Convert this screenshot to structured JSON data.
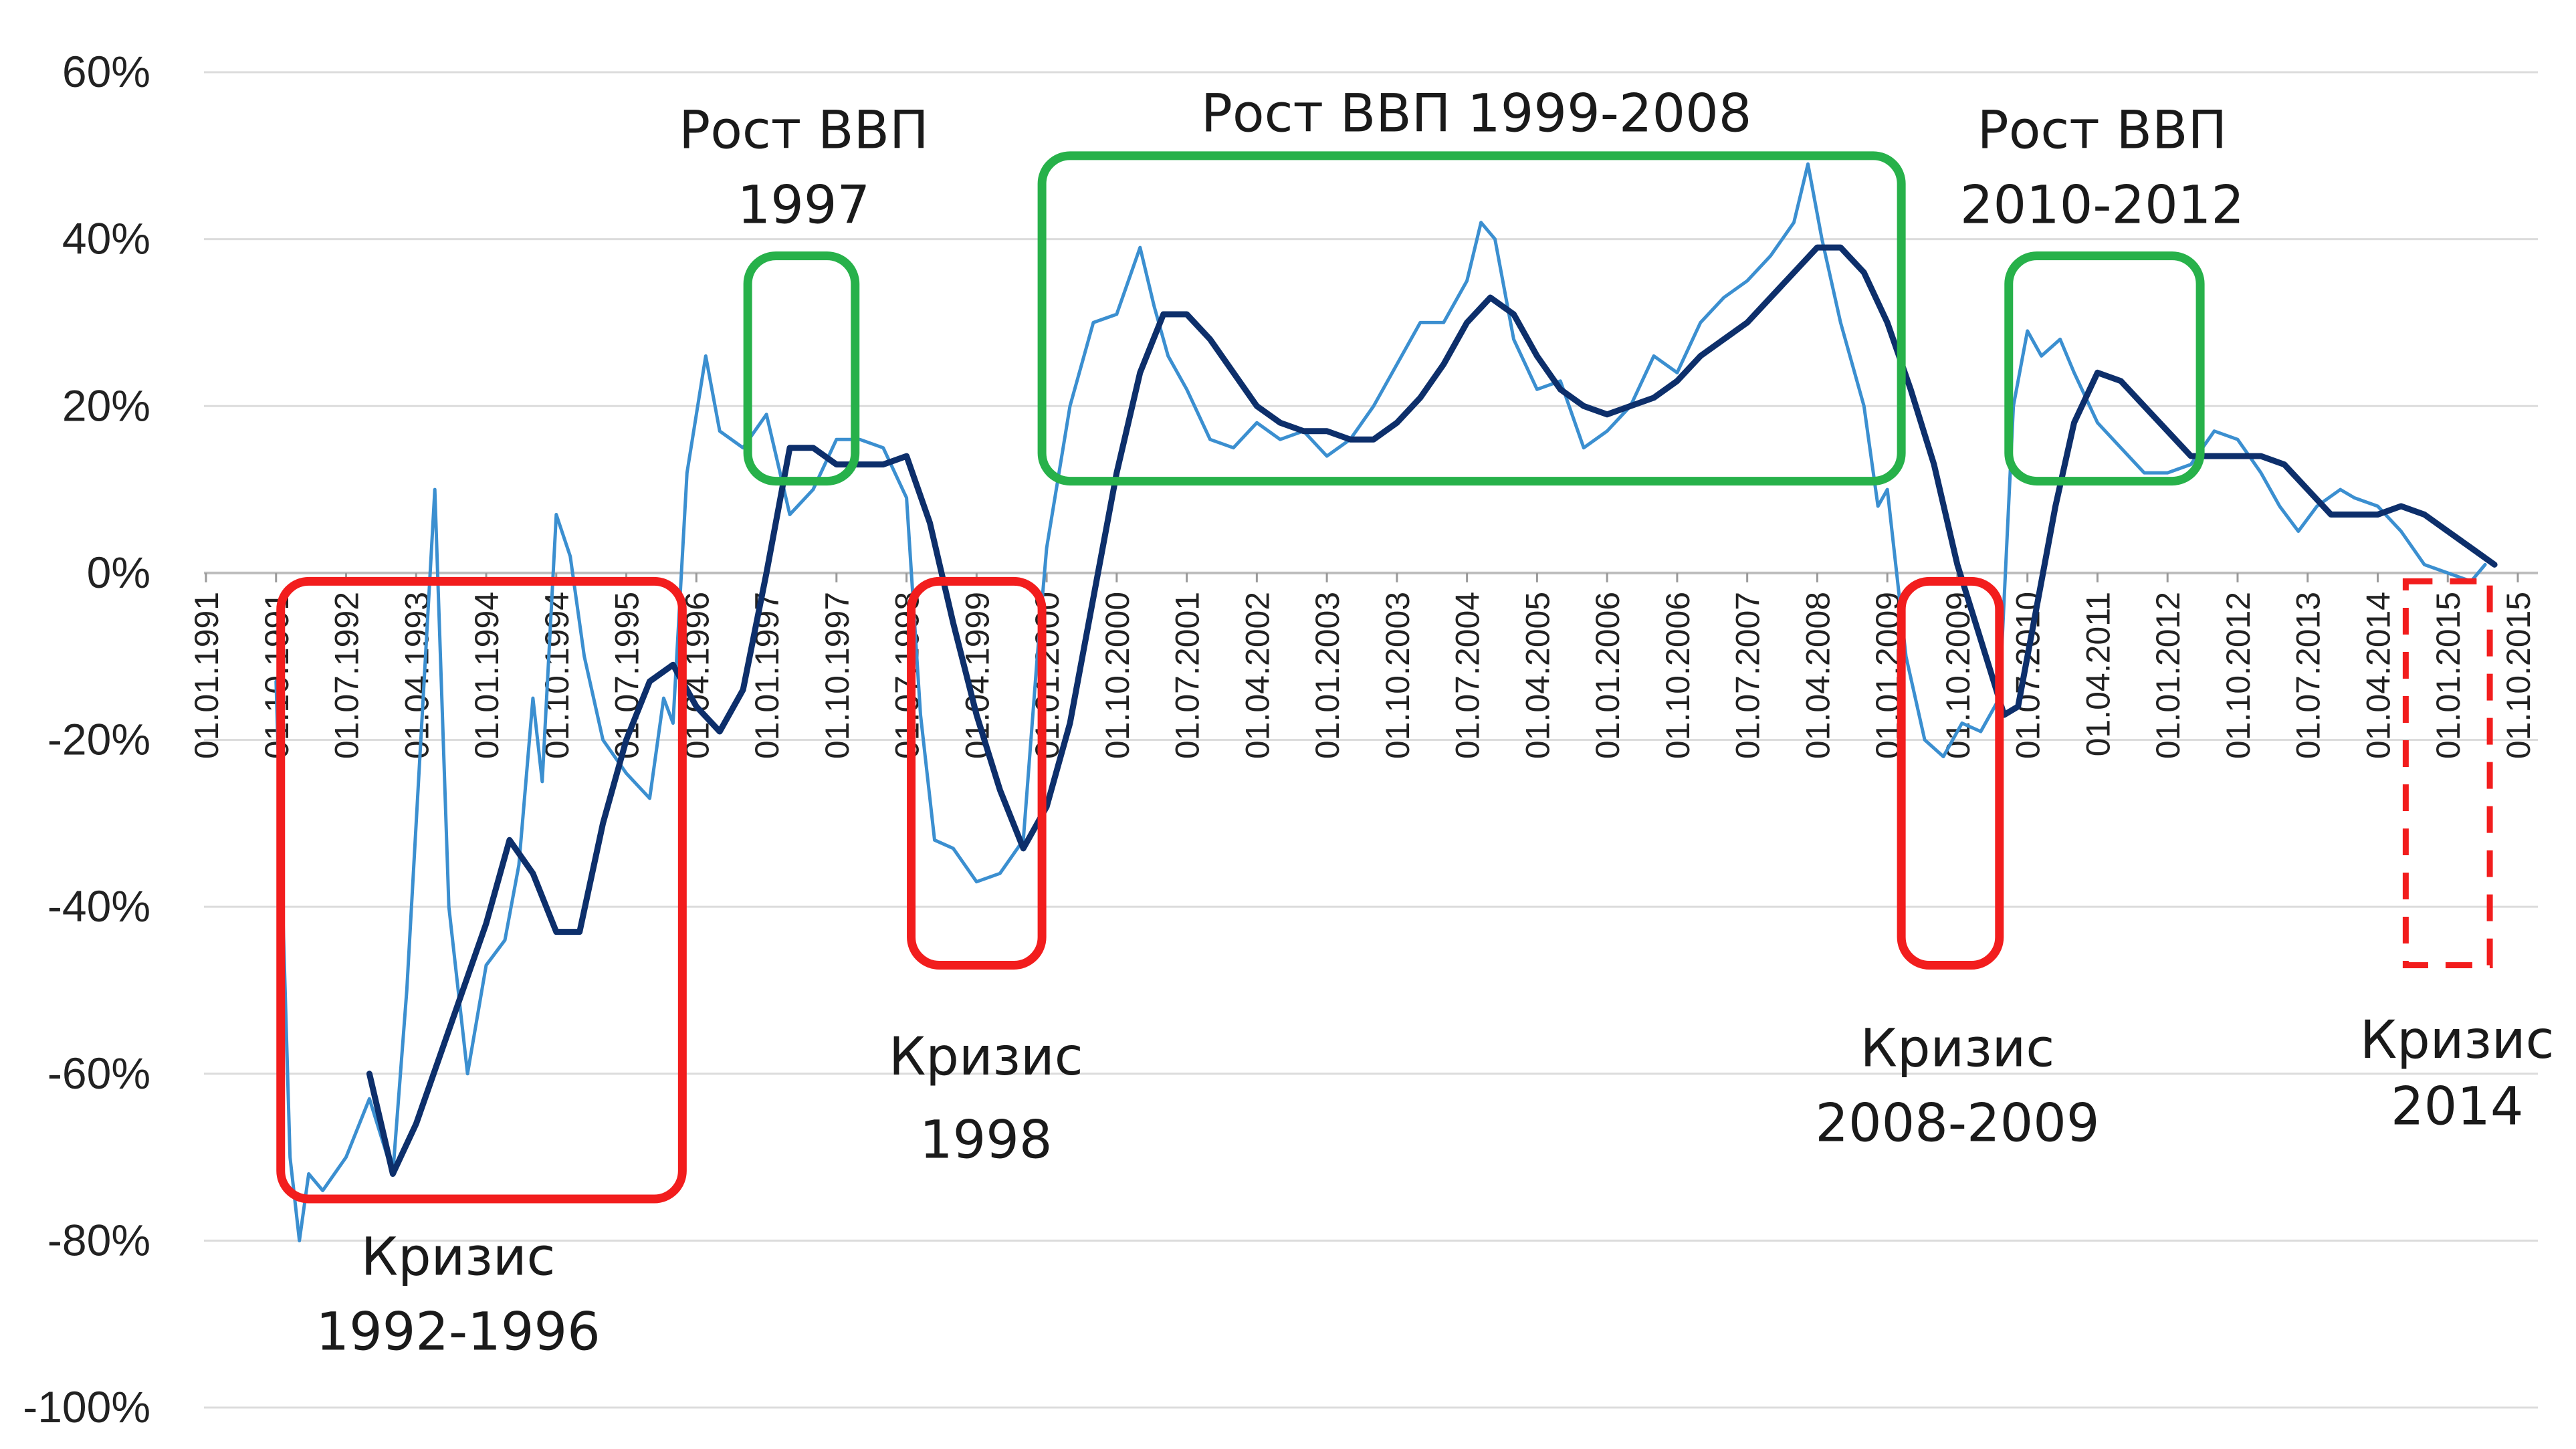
{
  "chart_data": {
    "type": "line",
    "ylim": [
      -100,
      60
    ],
    "yticks": [
      60,
      40,
      20,
      0,
      -20,
      -40,
      -60,
      -80,
      -100
    ],
    "ytick_labels": [
      "60%",
      "40%",
      "20%",
      "0%",
      "-20%",
      "-40%",
      "-60%",
      "-80%",
      "-100%"
    ],
    "x_tick_labels": [
      "01.01.1991",
      "01.10.1991",
      "01.07.1992",
      "01.04.1993",
      "01.01.1994",
      "01.10.1994",
      "01.07.1995",
      "01.04.1996",
      "01.01.1997",
      "01.10.1997",
      "01.07.1998",
      "01.04.1999",
      "01.01.2000",
      "01.10.2000",
      "01.07.2001",
      "01.04.2002",
      "01.01.2003",
      "01.10.2003",
      "01.07.2004",
      "01.04.2005",
      "01.01.2006",
      "01.10.2006",
      "01.07.2007",
      "01.04.2008",
      "01.01.2009",
      "01.10.2009",
      "01.07.2010",
      "01.04.2011",
      "01.01.2012",
      "01.10.2012",
      "01.07.2013",
      "01.04.2014",
      "01.01.2015",
      "01.10.2015"
    ],
    "grid": true,
    "series": [
      {
        "color": "#3b8fd0",
        "points": [
          [
            1991.75,
            -13
          ],
          [
            1991.9,
            -70
          ],
          [
            1992.0,
            -80
          ],
          [
            1992.1,
            -72
          ],
          [
            1992.25,
            -74
          ],
          [
            1992.5,
            -70
          ],
          [
            1992.75,
            -63
          ],
          [
            1993.0,
            -72
          ],
          [
            1993.15,
            -50
          ],
          [
            1993.3,
            -20
          ],
          [
            1993.45,
            10
          ],
          [
            1993.6,
            -40
          ],
          [
            1993.8,
            -60
          ],
          [
            1994.0,
            -47
          ],
          [
            1994.2,
            -44
          ],
          [
            1994.35,
            -35
          ],
          [
            1994.5,
            -15
          ],
          [
            1994.6,
            -25
          ],
          [
            1994.75,
            7
          ],
          [
            1994.9,
            2
          ],
          [
            1995.05,
            -10
          ],
          [
            1995.25,
            -20
          ],
          [
            1995.5,
            -24
          ],
          [
            1995.75,
            -27
          ],
          [
            1995.9,
            -15
          ],
          [
            1996.0,
            -18
          ],
          [
            1996.15,
            12
          ],
          [
            1996.35,
            26
          ],
          [
            1996.5,
            17
          ],
          [
            1996.75,
            15
          ],
          [
            1997.0,
            19
          ],
          [
            1997.25,
            7
          ],
          [
            1997.5,
            10
          ],
          [
            1997.75,
            16
          ],
          [
            1998.0,
            16
          ],
          [
            1998.25,
            15
          ],
          [
            1998.5,
            9
          ],
          [
            1998.65,
            -17
          ],
          [
            1998.8,
            -32
          ],
          [
            1999.0,
            -33
          ],
          [
            1999.25,
            -37
          ],
          [
            1999.5,
            -36
          ],
          [
            1999.75,
            -32
          ],
          [
            1999.9,
            -10
          ],
          [
            2000.0,
            3
          ],
          [
            2000.25,
            20
          ],
          [
            2000.5,
            30
          ],
          [
            2000.75,
            31
          ],
          [
            2001.0,
            39
          ],
          [
            2001.15,
            32
          ],
          [
            2001.3,
            26
          ],
          [
            2001.5,
            22
          ],
          [
            2001.75,
            16
          ],
          [
            2002.0,
            15
          ],
          [
            2002.25,
            18
          ],
          [
            2002.5,
            16
          ],
          [
            2002.75,
            17
          ],
          [
            2003.0,
            14
          ],
          [
            2003.25,
            16
          ],
          [
            2003.5,
            20
          ],
          [
            2003.75,
            25
          ],
          [
            2004.0,
            30
          ],
          [
            2004.25,
            30
          ],
          [
            2004.5,
            35
          ],
          [
            2004.65,
            42
          ],
          [
            2004.8,
            40
          ],
          [
            2005.0,
            28
          ],
          [
            2005.25,
            22
          ],
          [
            2005.5,
            23
          ],
          [
            2005.75,
            15
          ],
          [
            2006.0,
            17
          ],
          [
            2006.25,
            20
          ],
          [
            2006.5,
            26
          ],
          [
            2006.75,
            24
          ],
          [
            2007.0,
            30
          ],
          [
            2007.25,
            33
          ],
          [
            2007.5,
            35
          ],
          [
            2007.75,
            38
          ],
          [
            2008.0,
            42
          ],
          [
            2008.15,
            49
          ],
          [
            2008.3,
            40
          ],
          [
            2008.5,
            30
          ],
          [
            2008.75,
            20
          ],
          [
            2008.9,
            8
          ],
          [
            2009.0,
            10
          ],
          [
            2009.2,
            -10
          ],
          [
            2009.4,
            -20
          ],
          [
            2009.6,
            -22
          ],
          [
            2009.8,
            -18
          ],
          [
            2010.0,
            -19
          ],
          [
            2010.2,
            -15
          ],
          [
            2010.35,
            20
          ],
          [
            2010.5,
            29
          ],
          [
            2010.65,
            26
          ],
          [
            2010.85,
            28
          ],
          [
            2011.0,
            24
          ],
          [
            2011.25,
            18
          ],
          [
            2011.5,
            15
          ],
          [
            2011.75,
            12
          ],
          [
            2012.0,
            12
          ],
          [
            2012.25,
            13
          ],
          [
            2012.5,
            17
          ],
          [
            2012.75,
            16
          ],
          [
            2013.0,
            12
          ],
          [
            2013.2,
            8
          ],
          [
            2013.4,
            5
          ],
          [
            2013.6,
            8
          ],
          [
            2013.85,
            10
          ],
          [
            2014.0,
            9
          ],
          [
            2014.25,
            8
          ],
          [
            2014.5,
            5
          ],
          [
            2014.75,
            1
          ],
          [
            2015.0,
            0
          ],
          [
            2015.25,
            -1
          ],
          [
            2015.4,
            1
          ]
        ]
      },
      {
        "color": "#0d2f6b",
        "points": [
          [
            1992.75,
            -60
          ],
          [
            1993.0,
            -72
          ],
          [
            1993.25,
            -66
          ],
          [
            1993.5,
            -58
          ],
          [
            1993.75,
            -50
          ],
          [
            1994.0,
            -42
          ],
          [
            1994.25,
            -32
          ],
          [
            1994.5,
            -36
          ],
          [
            1994.75,
            -43
          ],
          [
            1995.0,
            -43
          ],
          [
            1995.25,
            -30
          ],
          [
            1995.5,
            -20
          ],
          [
            1995.75,
            -13
          ],
          [
            1996.0,
            -11
          ],
          [
            1996.25,
            -16
          ],
          [
            1996.5,
            -19
          ],
          [
            1996.75,
            -14
          ],
          [
            1997.0,
            0
          ],
          [
            1997.25,
            15
          ],
          [
            1997.5,
            15
          ],
          [
            1997.75,
            13
          ],
          [
            1998.0,
            13
          ],
          [
            1998.25,
            13
          ],
          [
            1998.5,
            14
          ],
          [
            1998.75,
            6
          ],
          [
            1999.0,
            -6
          ],
          [
            1999.25,
            -17
          ],
          [
            1999.5,
            -26
          ],
          [
            1999.75,
            -33
          ],
          [
            2000.0,
            -28
          ],
          [
            2000.25,
            -18
          ],
          [
            2000.5,
            -3
          ],
          [
            2000.75,
            12
          ],
          [
            2001.0,
            24
          ],
          [
            2001.25,
            31
          ],
          [
            2001.5,
            31
          ],
          [
            2001.75,
            28
          ],
          [
            2002.0,
            24
          ],
          [
            2002.25,
            20
          ],
          [
            2002.5,
            18
          ],
          [
            2002.75,
            17
          ],
          [
            2003.0,
            17
          ],
          [
            2003.25,
            16
          ],
          [
            2003.5,
            16
          ],
          [
            2003.75,
            18
          ],
          [
            2004.0,
            21
          ],
          [
            2004.25,
            25
          ],
          [
            2004.5,
            30
          ],
          [
            2004.75,
            33
          ],
          [
            2005.0,
            31
          ],
          [
            2005.25,
            26
          ],
          [
            2005.5,
            22
          ],
          [
            2005.75,
            20
          ],
          [
            2006.0,
            19
          ],
          [
            2006.25,
            20
          ],
          [
            2006.5,
            21
          ],
          [
            2006.75,
            23
          ],
          [
            2007.0,
            26
          ],
          [
            2007.25,
            28
          ],
          [
            2007.5,
            30
          ],
          [
            2007.75,
            33
          ],
          [
            2008.0,
            36
          ],
          [
            2008.25,
            39
          ],
          [
            2008.5,
            39
          ],
          [
            2008.75,
            36
          ],
          [
            2009.0,
            30
          ],
          [
            2009.25,
            22
          ],
          [
            2009.5,
            13
          ],
          [
            2009.75,
            1
          ],
          [
            2010.0,
            -8
          ],
          [
            2010.25,
            -17
          ],
          [
            2010.4,
            -16
          ],
          [
            2010.6,
            -4
          ],
          [
            2010.8,
            8
          ],
          [
            2011.0,
            18
          ],
          [
            2011.25,
            24
          ],
          [
            2011.5,
            23
          ],
          [
            2011.75,
            20
          ],
          [
            2012.0,
            17
          ],
          [
            2012.25,
            14
          ],
          [
            2012.5,
            14
          ],
          [
            2012.75,
            14
          ],
          [
            2013.0,
            14
          ],
          [
            2013.25,
            13
          ],
          [
            2013.5,
            10
          ],
          [
            2013.75,
            7
          ],
          [
            2014.0,
            7
          ],
          [
            2014.25,
            7
          ],
          [
            2014.5,
            8
          ],
          [
            2014.75,
            7
          ],
          [
            2015.0,
            5
          ],
          [
            2015.25,
            3
          ],
          [
            2015.5,
            1
          ]
        ]
      }
    ]
  },
  "annotations": [
    {
      "id": "crisis-1992-1996",
      "kind": "crisis",
      "color": "#f21d1d",
      "dashed": false,
      "x_range": [
        1991.8,
        1996.1
      ],
      "y_range": [
        -75,
        -1
      ],
      "lines": [
        "Кризис",
        "1992-1996"
      ],
      "label_x": 1993.7,
      "label_y": [
        -82,
        -91
      ]
    },
    {
      "id": "growth-1997",
      "kind": "growth",
      "color": "#27b14a",
      "dashed": false,
      "x_range": [
        1996.8,
        1997.95
      ],
      "y_range": [
        11,
        38
      ],
      "lines": [
        "Рост ВВП",
        "1997"
      ],
      "label_x": 1997.4,
      "label_y": [
        53,
        44
      ]
    },
    {
      "id": "crisis-1998",
      "kind": "crisis",
      "color": "#f21d1d",
      "dashed": false,
      "x_range": [
        1998.55,
        1999.95
      ],
      "y_range": [
        -47,
        -1
      ],
      "lines": [
        "Кризис",
        "1998"
      ],
      "label_x": 1999.35,
      "label_y": [
        -58,
        -68
      ]
    },
    {
      "id": "growth-1999-2008",
      "kind": "growth",
      "color": "#27b14a",
      "dashed": false,
      "x_range": [
        1999.95,
        2009.15
      ],
      "y_range": [
        11,
        50
      ],
      "lines": [
        "Рост ВВП 1999-2008"
      ],
      "label_x": 2004.6,
      "label_y": [
        55
      ]
    },
    {
      "id": "crisis-2008-2009",
      "kind": "crisis",
      "color": "#f21d1d",
      "dashed": false,
      "x_range": [
        2009.15,
        2010.2
      ],
      "y_range": [
        -47,
        -1
      ],
      "lines": [
        "Кризис",
        "2008-2009"
      ],
      "label_x": 2009.75,
      "label_y": [
        -57,
        -66
      ]
    },
    {
      "id": "growth-2010-2012",
      "kind": "growth",
      "color": "#27b14a",
      "dashed": false,
      "x_range": [
        2010.3,
        2012.35
      ],
      "y_range": [
        11,
        38
      ],
      "lines": [
        "Рост ВВП",
        "2010-2012"
      ],
      "label_x": 2011.3,
      "label_y": [
        53,
        44
      ]
    },
    {
      "id": "crisis-2014",
      "kind": "crisis",
      "color": "#f21d1d",
      "dashed": true,
      "x_range": [
        2014.55,
        2015.45
      ],
      "y_range": [
        -47,
        -1
      ],
      "lines": [
        "Кризис",
        "2014"
      ],
      "label_x": 2015.1,
      "label_y": [
        -56,
        -64
      ]
    }
  ]
}
